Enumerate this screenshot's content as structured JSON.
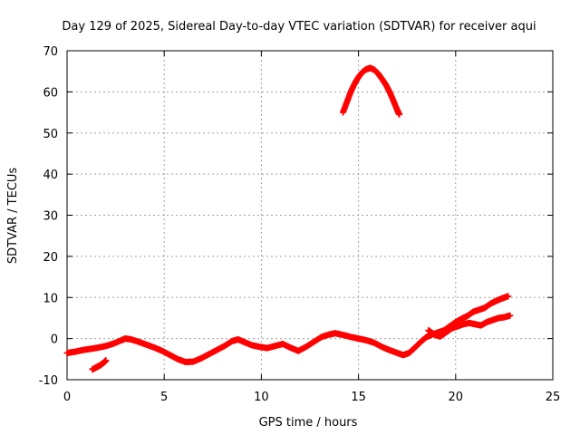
{
  "chart_data": {
    "type": "scatter",
    "title": "Day 129 of 2025, Sidereal Day-to-day VTEC variation (SDTVAR) for receiver aqui",
    "xlabel": "GPS time / hours",
    "ylabel": "SDTVAR / TECUs",
    "xlim": [
      0,
      25
    ],
    "ylim": [
      -10,
      70
    ],
    "xticks": [
      0,
      5,
      10,
      15,
      20,
      25
    ],
    "yticks": [
      -10,
      0,
      10,
      20,
      30,
      40,
      50,
      60,
      70
    ],
    "grid": true,
    "marker": "plus",
    "series": [
      {
        "name": "SDTVAR main track",
        "color": "#ff0000",
        "points": [
          [
            0.0,
            -3.5
          ],
          [
            0.4,
            -3.2
          ],
          [
            0.8,
            -2.8
          ],
          [
            1.2,
            -2.5
          ],
          [
            1.6,
            -2.2
          ],
          [
            2.0,
            -1.8
          ],
          [
            2.4,
            -1.2
          ],
          [
            2.8,
            -0.4
          ],
          [
            3.0,
            0.0
          ],
          [
            3.3,
            -0.2
          ],
          [
            3.7,
            -0.8
          ],
          [
            4.1,
            -1.5
          ],
          [
            4.5,
            -2.2
          ],
          [
            4.9,
            -3.0
          ],
          [
            5.3,
            -4.0
          ],
          [
            5.7,
            -5.0
          ],
          [
            6.1,
            -5.7
          ],
          [
            6.5,
            -5.6
          ],
          [
            6.9,
            -4.8
          ],
          [
            7.3,
            -3.8
          ],
          [
            7.7,
            -2.8
          ],
          [
            8.1,
            -1.8
          ],
          [
            8.5,
            -0.6
          ],
          [
            8.8,
            -0.2
          ],
          [
            9.1,
            -0.8
          ],
          [
            9.5,
            -1.6
          ],
          [
            9.9,
            -2.0
          ],
          [
            10.3,
            -2.3
          ],
          [
            10.7,
            -1.8
          ],
          [
            11.1,
            -1.3
          ],
          [
            11.5,
            -2.2
          ],
          [
            11.9,
            -3.0
          ],
          [
            12.3,
            -2.0
          ],
          [
            12.7,
            -0.8
          ],
          [
            13.1,
            0.4
          ],
          [
            13.5,
            1.0
          ],
          [
            13.8,
            1.3
          ],
          [
            14.2,
            0.9
          ],
          [
            14.6,
            0.4
          ],
          [
            15.0,
            0.0
          ],
          [
            15.4,
            -0.4
          ],
          [
            15.8,
            -1.0
          ],
          [
            16.2,
            -2.0
          ],
          [
            16.6,
            -2.8
          ],
          [
            17.0,
            -3.5
          ],
          [
            17.3,
            -4.0
          ],
          [
            17.6,
            -3.5
          ],
          [
            17.9,
            -2.2
          ],
          [
            18.2,
            -0.8
          ],
          [
            18.5,
            0.4
          ],
          [
            18.8,
            1.0
          ],
          [
            19.1,
            1.5
          ],
          [
            19.4,
            2.0
          ],
          [
            19.7,
            3.0
          ],
          [
            20.0,
            4.0
          ],
          [
            20.3,
            4.8
          ],
          [
            20.6,
            5.5
          ],
          [
            20.9,
            6.5
          ],
          [
            21.2,
            7.0
          ],
          [
            21.5,
            7.5
          ],
          [
            21.8,
            8.5
          ],
          [
            22.1,
            9.2
          ],
          [
            22.4,
            9.8
          ],
          [
            22.7,
            10.3
          ]
        ]
      },
      {
        "name": "SDTVAR upper arc",
        "color": "#ff0000",
        "points": [
          [
            14.2,
            55.0
          ],
          [
            14.4,
            57.5
          ],
          [
            14.6,
            60.0
          ],
          [
            14.8,
            62.0
          ],
          [
            15.0,
            63.6
          ],
          [
            15.2,
            64.8
          ],
          [
            15.4,
            65.5
          ],
          [
            15.6,
            65.8
          ],
          [
            15.8,
            65.4
          ],
          [
            16.0,
            64.5
          ],
          [
            16.2,
            63.2
          ],
          [
            16.4,
            61.8
          ],
          [
            16.6,
            60.0
          ],
          [
            16.8,
            57.8
          ],
          [
            17.0,
            55.5
          ],
          [
            17.1,
            54.5
          ]
        ]
      },
      {
        "name": "SDTVAR short segment",
        "color": "#ff0000",
        "points": [
          [
            1.3,
            -7.5
          ],
          [
            1.5,
            -7.0
          ],
          [
            1.7,
            -6.5
          ],
          [
            1.9,
            -5.8
          ],
          [
            2.0,
            -5.3
          ]
        ]
      },
      {
        "name": "SDTVAR secondary track",
        "color": "#ff0000",
        "points": [
          [
            18.6,
            2.0
          ],
          [
            18.9,
            1.0
          ],
          [
            19.2,
            0.5
          ],
          [
            19.5,
            1.5
          ],
          [
            19.8,
            2.5
          ],
          [
            20.1,
            3.0
          ],
          [
            20.4,
            3.5
          ],
          [
            20.7,
            3.8
          ],
          [
            21.0,
            3.5
          ],
          [
            21.3,
            3.2
          ],
          [
            21.6,
            4.0
          ],
          [
            21.9,
            4.5
          ],
          [
            22.2,
            5.0
          ],
          [
            22.5,
            5.2
          ],
          [
            22.8,
            5.6
          ]
        ]
      }
    ]
  }
}
